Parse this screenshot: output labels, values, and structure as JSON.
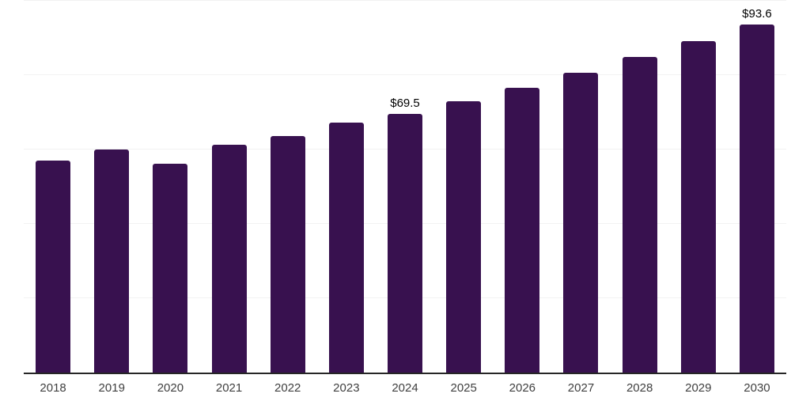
{
  "chart_data": {
    "type": "bar",
    "title": "",
    "xlabel": "",
    "ylabel": "",
    "categories": [
      "2018",
      "2019",
      "2020",
      "2021",
      "2022",
      "2023",
      "2024",
      "2025",
      "2026",
      "2027",
      "2028",
      "2029",
      "2030"
    ],
    "values": [
      57.0,
      60.1,
      56.2,
      61.2,
      63.6,
      67.2,
      69.5,
      73.0,
      76.6,
      80.7,
      85.0,
      89.1,
      93.6
    ],
    "data_labels": [
      "",
      "",
      "",
      "",
      "",
      "",
      "$69.5",
      "",
      "",
      "",
      "",
      "",
      "$93.6"
    ],
    "ylim": [
      0,
      100
    ],
    "gridlines": [
      20,
      40,
      60,
      80,
      100
    ],
    "grid": "horizontal-only",
    "legend": "none",
    "y_axis_labels_visible": false,
    "colors": {
      "bar": "#38114f",
      "axis_line": "#262626",
      "gridline": "#f2f2f2",
      "data_label": "#000000",
      "tick_label": "#3f3f3f",
      "background": "#ffffff"
    }
  }
}
